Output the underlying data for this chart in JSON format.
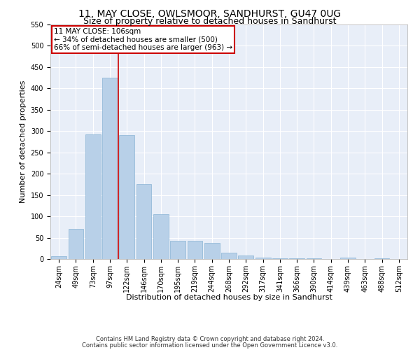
{
  "title": "11, MAY CLOSE, OWLSMOOR, SANDHURST, GU47 0UG",
  "subtitle": "Size of property relative to detached houses in Sandhurst",
  "xlabel": "Distribution of detached houses by size in Sandhurst",
  "ylabel": "Number of detached properties",
  "categories": [
    "24sqm",
    "49sqm",
    "73sqm",
    "97sqm",
    "122sqm",
    "146sqm",
    "170sqm",
    "195sqm",
    "219sqm",
    "244sqm",
    "268sqm",
    "292sqm",
    "317sqm",
    "341sqm",
    "366sqm",
    "390sqm",
    "414sqm",
    "439sqm",
    "463sqm",
    "488sqm",
    "512sqm"
  ],
  "values": [
    7,
    70,
    292,
    425,
    290,
    175,
    105,
    43,
    43,
    38,
    15,
    8,
    3,
    2,
    1,
    1,
    0,
    3,
    0,
    2,
    0
  ],
  "bar_color": "#b8d0e8",
  "bar_edge_color": "#8ab4d4",
  "annotation_text": "11 MAY CLOSE: 106sqm\n← 34% of detached houses are smaller (500)\n66% of semi-detached houses are larger (963) →",
  "annotation_box_color": "#ffffff",
  "annotation_box_edge_color": "#cc0000",
  "vline_color": "#cc0000",
  "ylim": [
    0,
    550
  ],
  "footer1": "Contains HM Land Registry data © Crown copyright and database right 2024.",
  "footer2": "Contains public sector information licensed under the Open Government Licence v3.0.",
  "bg_color": "#e8eef8",
  "grid_color": "#ffffff",
  "title_fontsize": 10,
  "subtitle_fontsize": 9,
  "axis_label_fontsize": 8,
  "tick_fontsize": 7,
  "annotation_fontsize": 7.5,
  "footer_fontsize": 6
}
